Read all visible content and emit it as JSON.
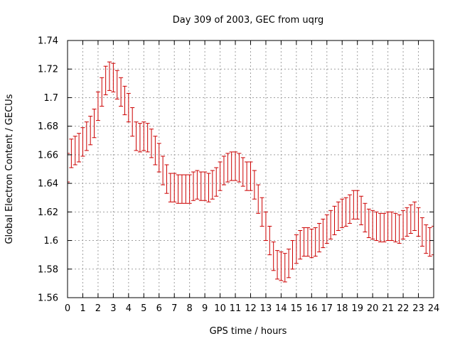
{
  "chart_data": {
    "type": "errorbar",
    "title": "Day 309 of 2003, GEC from uqrg",
    "xlabel": "GPS time / hours",
    "ylabel": "Global Electron Content / GECUs",
    "xlim": [
      0,
      24
    ],
    "ylim": [
      1.56,
      1.74
    ],
    "xticks": [
      "0",
      "1",
      "2",
      "3",
      "4",
      "5",
      "6",
      "7",
      "8",
      "9",
      "10",
      "11",
      "12",
      "13",
      "14",
      "15",
      "16",
      "17",
      "18",
      "19",
      "20",
      "21",
      "22",
      "23",
      "24"
    ],
    "yticks": [
      "1.56",
      "1.58",
      "1.6",
      "1.62",
      "1.64",
      "1.66",
      "1.68",
      "1.7",
      "1.72",
      "1.74"
    ],
    "grid": true,
    "color": "#cc0000",
    "error": 0.01,
    "series": [
      {
        "x": [
          0,
          0.25,
          0.5,
          0.75,
          1,
          1.25,
          1.5,
          1.75,
          2,
          2.25,
          2.5,
          2.75,
          3,
          3.25,
          3.5,
          3.75,
          4,
          4.25,
          4.5,
          4.75,
          5,
          5.25,
          5.5,
          5.75,
          6,
          6.25,
          6.5,
          6.75,
          7,
          7.25,
          7.5,
          7.75,
          8,
          8.25,
          8.5,
          8.75,
          9,
          9.25,
          9.5,
          9.75,
          10,
          10.25,
          10.5,
          10.75,
          11,
          11.25,
          11.5,
          11.75,
          12,
          12.25,
          12.5,
          12.75,
          13,
          13.25,
          13.5,
          13.75,
          14,
          14.25,
          14.5,
          14.75,
          15,
          15.25,
          15.5,
          15.75,
          16,
          16.25,
          16.5,
          16.75,
          17,
          17.25,
          17.5,
          17.75,
          18,
          18.25,
          18.5,
          18.75,
          19,
          19.25,
          19.5,
          19.75,
          20,
          20.25,
          20.5,
          20.75,
          21,
          21.25,
          21.5,
          21.75,
          22,
          22.25,
          22.5,
          22.75,
          23,
          23.25,
          23.5,
          23.75,
          24
        ],
        "values": [
          1.651,
          1.661,
          1.663,
          1.665,
          1.669,
          1.673,
          1.677,
          1.682,
          1.694,
          1.704,
          1.712,
          1.715,
          1.714,
          1.709,
          1.704,
          1.698,
          1.693,
          1.683,
          1.673,
          1.672,
          1.673,
          1.672,
          1.668,
          1.663,
          1.658,
          1.649,
          1.643,
          1.637,
          1.637,
          1.636,
          1.636,
          1.636,
          1.636,
          1.638,
          1.639,
          1.638,
          1.638,
          1.637,
          1.639,
          1.641,
          1.645,
          1.649,
          1.651,
          1.652,
          1.652,
          1.651,
          1.648,
          1.645,
          1.645,
          1.639,
          1.629,
          1.62,
          1.61,
          1.6,
          1.589,
          1.583,
          1.582,
          1.581,
          1.584,
          1.59,
          1.594,
          1.597,
          1.599,
          1.599,
          1.598,
          1.599,
          1.602,
          1.605,
          1.608,
          1.611,
          1.614,
          1.617,
          1.619,
          1.62,
          1.622,
          1.625,
          1.625,
          1.621,
          1.616,
          1.612,
          1.611,
          1.61,
          1.609,
          1.609,
          1.61,
          1.61,
          1.609,
          1.608,
          1.611,
          1.613,
          1.615,
          1.617,
          1.613,
          1.606,
          1.601,
          1.599,
          1.6
        ]
      }
    ]
  }
}
